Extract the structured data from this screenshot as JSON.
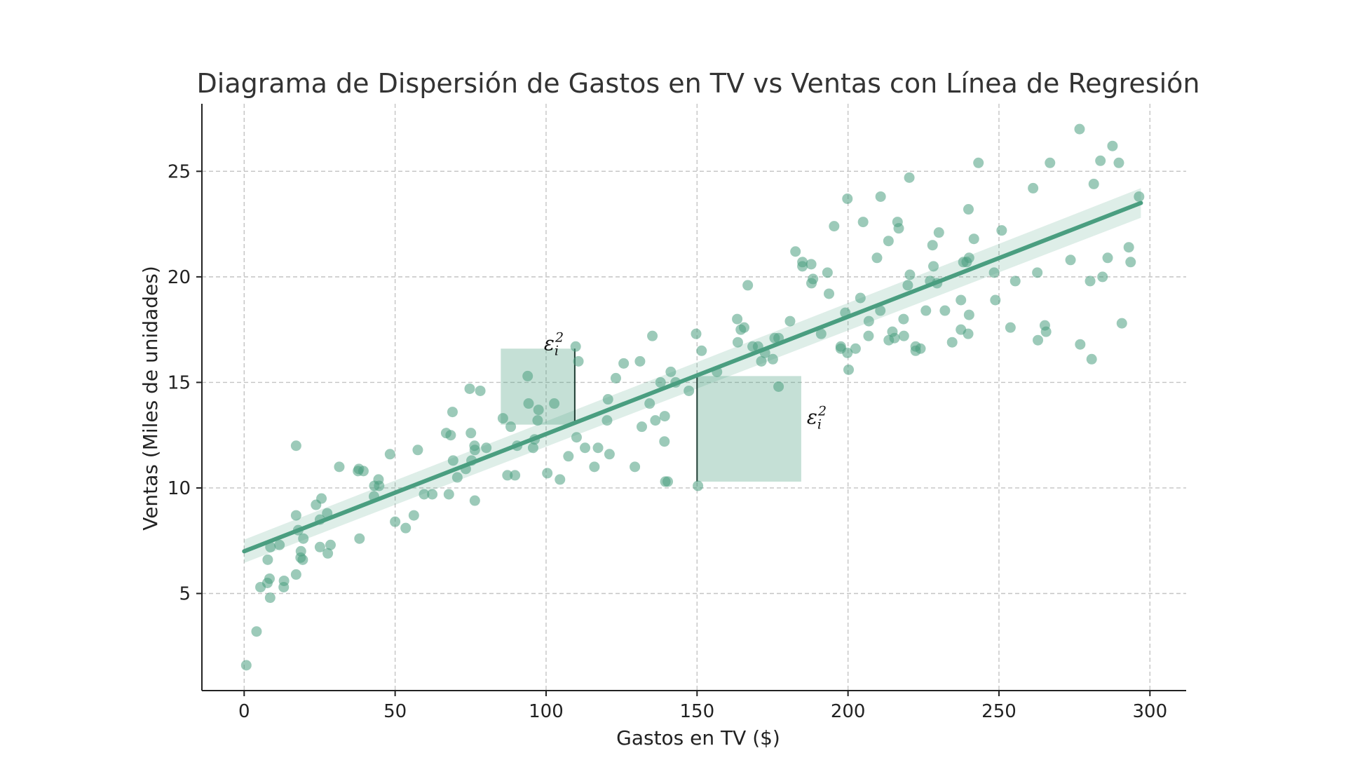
{
  "chart_data": {
    "type": "scatter",
    "title": "Diagrama de Dispersión de Gastos en TV vs Ventas con Línea de Regresión",
    "xlabel": "Gastos en TV ($)",
    "ylabel": "Ventas (Miles de unidades)",
    "xlim": [
      -14,
      312
    ],
    "ylim": [
      0.4,
      28.2
    ],
    "xticks": [
      0,
      50,
      100,
      150,
      200,
      250,
      300
    ],
    "yticks": [
      5,
      10,
      15,
      20,
      25
    ],
    "grid": true,
    "colors": {
      "points": "#4a9e80",
      "line": "#4a9e80"
    },
    "regression": {
      "x": [
        0,
        297
      ],
      "y": [
        7.0,
        23.5
      ],
      "ci_halfwidth": [
        0.55,
        0.7
      ]
    },
    "residual_annotations": [
      {
        "label": "ε",
        "sub": "i",
        "sup": "2",
        "x": 109.5,
        "y_top": 16.6,
        "y_bottom": 13.0,
        "box_x0": 85,
        "box_x1": 109.5
      },
      {
        "label": "ε",
        "sub": "i",
        "sup": "2",
        "x": 150,
        "y_top": 15.3,
        "y_bottom": 10.3,
        "box_x0": 150,
        "box_x1": 184.5
      }
    ],
    "points": [
      [
        0.7,
        1.6
      ],
      [
        4.1,
        3.2
      ],
      [
        5.4,
        5.3
      ],
      [
        7.7,
        5.5
      ],
      [
        8.4,
        5.7
      ],
      [
        8.6,
        4.8
      ],
      [
        7.8,
        6.6
      ],
      [
        8.7,
        7.2
      ],
      [
        11.7,
        7.3
      ],
      [
        13.1,
        5.3
      ],
      [
        13.2,
        5.6
      ],
      [
        17.2,
        5.9
      ],
      [
        17.2,
        8.7
      ],
      [
        17.9,
        8.0
      ],
      [
        18.8,
        7.0
      ],
      [
        18.7,
        6.7
      ],
      [
        19.4,
        6.6
      ],
      [
        19.6,
        7.6
      ],
      [
        17.2,
        12.0
      ],
      [
        23.8,
        9.2
      ],
      [
        25.1,
        7.2
      ],
      [
        25.1,
        8.5
      ],
      [
        25.6,
        9.5
      ],
      [
        27.5,
        8.8
      ],
      [
        27.7,
        6.9
      ],
      [
        28.6,
        7.3
      ],
      [
        31.5,
        11.0
      ],
      [
        37.7,
        10.8
      ],
      [
        38.0,
        10.9
      ],
      [
        38.2,
        7.6
      ],
      [
        39.5,
        10.8
      ],
      [
        43.0,
        9.6
      ],
      [
        43.1,
        10.1
      ],
      [
        44.5,
        10.4
      ],
      [
        44.7,
        10.1
      ],
      [
        48.3,
        11.6
      ],
      [
        50.0,
        8.4
      ],
      [
        53.5,
        8.1
      ],
      [
        56.2,
        8.7
      ],
      [
        57.5,
        11.8
      ],
      [
        59.6,
        9.7
      ],
      [
        62.3,
        9.7
      ],
      [
        66.9,
        12.6
      ],
      [
        67.8,
        9.7
      ],
      [
        68.4,
        12.5
      ],
      [
        69.0,
        13.6
      ],
      [
        69.2,
        11.3
      ],
      [
        70.6,
        10.5
      ],
      [
        73.4,
        10.9
      ],
      [
        74.7,
        14.7
      ],
      [
        75.1,
        12.6
      ],
      [
        75.3,
        11.3
      ],
      [
        76.3,
        12.0
      ],
      [
        76.4,
        9.4
      ],
      [
        76.4,
        11.8
      ],
      [
        78.2,
        14.6
      ],
      [
        80.2,
        11.9
      ],
      [
        85.7,
        13.3
      ],
      [
        87.2,
        10.6
      ],
      [
        88.3,
        12.9
      ],
      [
        89.7,
        10.6
      ],
      [
        90.4,
        12.0
      ],
      [
        93.9,
        15.3
      ],
      [
        94.2,
        14.0
      ],
      [
        95.7,
        11.9
      ],
      [
        96.2,
        12.3
      ],
      [
        97.2,
        13.2
      ],
      [
        97.5,
        13.7
      ],
      [
        100.4,
        10.7
      ],
      [
        102.7,
        14.0
      ],
      [
        104.6,
        10.4
      ],
      [
        107.4,
        11.5
      ],
      [
        109.8,
        16.7
      ],
      [
        110.7,
        16.0
      ],
      [
        110.1,
        12.4
      ],
      [
        112.9,
        11.9
      ],
      [
        116.0,
        11.0
      ],
      [
        117.2,
        11.9
      ],
      [
        120.2,
        13.2
      ],
      [
        120.5,
        14.2
      ],
      [
        121.0,
        11.6
      ],
      [
        123.1,
        15.2
      ],
      [
        125.7,
        15.9
      ],
      [
        129.4,
        11.0
      ],
      [
        131.1,
        16.0
      ],
      [
        131.7,
        12.9
      ],
      [
        134.3,
        14.0
      ],
      [
        135.2,
        17.2
      ],
      [
        136.2,
        13.2
      ],
      [
        137.9,
        15.0
      ],
      [
        139.2,
        12.2
      ],
      [
        139.3,
        13.4
      ],
      [
        139.5,
        10.3
      ],
      [
        140.3,
        10.3
      ],
      [
        141.3,
        15.5
      ],
      [
        142.9,
        15.0
      ],
      [
        147.3,
        14.6
      ],
      [
        149.7,
        17.3
      ],
      [
        150.3,
        10.1
      ],
      [
        151.5,
        16.5
      ],
      [
        156.6,
        15.5
      ],
      [
        163.3,
        18.0
      ],
      [
        163.5,
        16.9
      ],
      [
        164.5,
        17.5
      ],
      [
        165.6,
        17.6
      ],
      [
        166.8,
        19.6
      ],
      [
        168.4,
        16.7
      ],
      [
        170.2,
        16.7
      ],
      [
        171.3,
        16.0
      ],
      [
        172.5,
        16.4
      ],
      [
        175.1,
        16.1
      ],
      [
        175.7,
        17.1
      ],
      [
        177.0,
        14.8
      ],
      [
        177.0,
        17.1
      ],
      [
        180.8,
        17.9
      ],
      [
        182.6,
        21.2
      ],
      [
        184.9,
        20.5
      ],
      [
        184.9,
        20.7
      ],
      [
        187.8,
        20.6
      ],
      [
        187.9,
        19.7
      ],
      [
        188.4,
        19.9
      ],
      [
        191.1,
        17.3
      ],
      [
        193.2,
        20.2
      ],
      [
        193.7,
        19.2
      ],
      [
        195.4,
        22.4
      ],
      [
        197.6,
        16.6
      ],
      [
        197.6,
        16.7
      ],
      [
        199.1,
        18.3
      ],
      [
        199.8,
        23.7
      ],
      [
        199.8,
        16.4
      ],
      [
        200.2,
        15.6
      ],
      [
        202.5,
        16.6
      ],
      [
        204.1,
        19.0
      ],
      [
        205.0,
        22.6
      ],
      [
        206.8,
        17.2
      ],
      [
        206.9,
        17.9
      ],
      [
        209.6,
        20.9
      ],
      [
        210.7,
        18.4
      ],
      [
        210.8,
        23.8
      ],
      [
        213.4,
        21.7
      ],
      [
        214.7,
        17.4
      ],
      [
        213.5,
        17.0
      ],
      [
        215.4,
        17.1
      ],
      [
        216.4,
        22.6
      ],
      [
        216.8,
        22.3
      ],
      [
        218.4,
        18.0
      ],
      [
        218.5,
        17.2
      ],
      [
        219.8,
        19.6
      ],
      [
        220.3,
        24.7
      ],
      [
        220.5,
        20.1
      ],
      [
        222.4,
        16.7
      ],
      [
        222.4,
        16.5
      ],
      [
        224.0,
        16.6
      ],
      [
        225.8,
        18.4
      ],
      [
        227.2,
        19.8
      ],
      [
        228.0,
        21.5
      ],
      [
        228.3,
        20.5
      ],
      [
        229.5,
        19.7
      ],
      [
        230.1,
        22.1
      ],
      [
        232.1,
        18.4
      ],
      [
        234.5,
        16.9
      ],
      [
        237.4,
        18.9
      ],
      [
        237.4,
        17.5
      ],
      [
        238.2,
        20.7
      ],
      [
        239.3,
        20.7
      ],
      [
        239.8,
        17.3
      ],
      [
        239.9,
        23.2
      ],
      [
        240.1,
        18.2
      ],
      [
        240.1,
        20.9
      ],
      [
        241.7,
        21.8
      ],
      [
        243.2,
        25.4
      ],
      [
        248.4,
        20.2
      ],
      [
        248.8,
        18.9
      ],
      [
        250.9,
        22.2
      ],
      [
        253.8,
        17.6
      ],
      [
        255.4,
        19.8
      ],
      [
        261.3,
        24.2
      ],
      [
        262.7,
        20.2
      ],
      [
        262.9,
        17.0
      ],
      [
        265.2,
        17.7
      ],
      [
        265.6,
        17.4
      ],
      [
        266.9,
        25.4
      ],
      [
        273.7,
        20.8
      ],
      [
        276.7,
        27.0
      ],
      [
        276.9,
        16.8
      ],
      [
        280.2,
        19.8
      ],
      [
        280.7,
        16.1
      ],
      [
        281.4,
        24.4
      ],
      [
        283.6,
        25.5
      ],
      [
        284.3,
        20.0
      ],
      [
        286.0,
        20.9
      ],
      [
        287.6,
        26.2
      ],
      [
        289.7,
        25.4
      ],
      [
        290.7,
        17.8
      ],
      [
        293.0,
        21.4
      ],
      [
        293.6,
        20.7
      ],
      [
        296.4,
        23.8
      ]
    ]
  }
}
